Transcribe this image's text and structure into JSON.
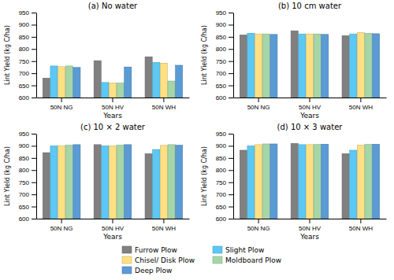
{
  "chart_data": [
    {
      "type": "bar",
      "title": "(a) No water",
      "categories": [
        "50N NG",
        "50N HV",
        "50N WH"
      ],
      "series": [
        {
          "name": "Furrow Plow",
          "color": "#808080",
          "values": [
            680,
            752,
            768
          ]
        },
        {
          "name": "Slight Plow",
          "color": "#5bc8f5",
          "values": [
            730,
            662,
            745
          ]
        },
        {
          "name": "Chisel/ Disk Plow",
          "color": "#ffe082",
          "values": [
            727,
            660,
            742
          ]
        },
        {
          "name": "Moldboard Plow",
          "color": "#a5d6a7",
          "values": [
            730,
            660,
            668
          ]
        },
        {
          "name": "Deep Plow",
          "color": "#5b9bd5",
          "values": [
            724,
            726,
            733
          ]
        }
      ],
      "xlabel": "Years",
      "ylabel": "Lint Yield (kg C/ha)",
      "ylim": [
        600,
        950
      ],
      "yticks": [
        600,
        650,
        700,
        750,
        800,
        850,
        900,
        950
      ],
      "legend": "bottom"
    },
    {
      "type": "bar",
      "title": "(b) 10 cm water",
      "categories": [
        "50N NG",
        "50N HV",
        "50N WH"
      ],
      "series": [
        {
          "name": "Furrow Plow",
          "color": "#808080",
          "values": [
            858,
            875,
            855
          ]
        },
        {
          "name": "Slight Plow",
          "color": "#5bc8f5",
          "values": [
            865,
            862,
            862
          ]
        },
        {
          "name": "Chisel/ Disk Plow",
          "color": "#ffe082",
          "values": [
            862,
            862,
            868
          ]
        },
        {
          "name": "Moldboard Plow",
          "color": "#a5d6a7",
          "values": [
            862,
            862,
            865
          ]
        },
        {
          "name": "Deep Plow",
          "color": "#5b9bd5",
          "values": [
            860,
            860,
            863
          ]
        }
      ],
      "xlabel": "Years",
      "ylabel": "Lint Yield (kg C/ha)",
      "ylim": [
        600,
        950
      ],
      "yticks": [
        600,
        650,
        700,
        750,
        800,
        850,
        900,
        950
      ]
    },
    {
      "type": "bar",
      "title": "(c) 10 × 2 water",
      "categories": [
        "50N NG",
        "50N HV",
        "50N WH"
      ],
      "series": [
        {
          "name": "Furrow Plow",
          "color": "#808080",
          "values": [
            872,
            905,
            868
          ]
        },
        {
          "name": "Slight Plow",
          "color": "#5bc8f5",
          "values": [
            900,
            900,
            885
          ]
        },
        {
          "name": "Chisel/ Disk Plow",
          "color": "#ffe082",
          "values": [
            900,
            900,
            902
          ]
        },
        {
          "name": "Moldboard Plow",
          "color": "#a5d6a7",
          "values": [
            903,
            903,
            905
          ]
        },
        {
          "name": "Deep Plow",
          "color": "#5b9bd5",
          "values": [
            905,
            905,
            903
          ]
        }
      ],
      "xlabel": "Years",
      "ylabel": "Lint Yield (kg C/ha)",
      "ylim": [
        600,
        950
      ],
      "yticks": [
        600,
        650,
        700,
        750,
        800,
        850,
        900,
        950
      ]
    },
    {
      "type": "bar",
      "title": "(d) 10 × 3 water",
      "categories": [
        "50N NG",
        "50N HV",
        "50N WH"
      ],
      "series": [
        {
          "name": "Furrow Plow",
          "color": "#808080",
          "values": [
            882,
            910,
            868
          ]
        },
        {
          "name": "Slight Plow",
          "color": "#5bc8f5",
          "values": [
            900,
            905,
            882
          ]
        },
        {
          "name": "Chisel/ Disk Plow",
          "color": "#ffe082",
          "values": [
            905,
            905,
            903
          ]
        },
        {
          "name": "Moldboard Plow",
          "color": "#a5d6a7",
          "values": [
            908,
            906,
            906
          ]
        },
        {
          "name": "Deep Plow",
          "color": "#5b9bd5",
          "values": [
            908,
            907,
            907
          ]
        }
      ],
      "xlabel": "Years",
      "ylabel": "Lint Yield (kg C/ha)",
      "ylim": [
        600,
        950
      ],
      "yticks": [
        600,
        650,
        700,
        750,
        800,
        850,
        900,
        950
      ]
    }
  ]
}
